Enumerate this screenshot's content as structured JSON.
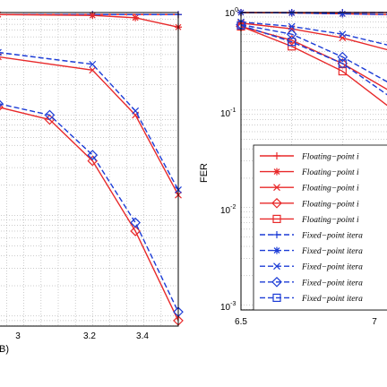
{
  "chart_data": [
    {
      "type": "line",
      "panel": "left",
      "xlim": [
        2.45,
        3.5
      ],
      "ylim_log": [
        0.0008,
        1.1
      ],
      "yscale": "log",
      "grid": true,
      "xticks": [
        "3",
        "3.2",
        "3.4"
      ],
      "xlabel_fragment": "B)",
      "series": [
        {
          "color": "#e8292a",
          "dash": false,
          "marker": "plus",
          "x": [
            2.45,
            3.0,
            3.5
          ],
          "y": [
            1.0,
            1.0,
            1.0
          ]
        },
        {
          "color": "#1c3cd6",
          "dash": true,
          "marker": "plus",
          "x": [
            2.45,
            3.0,
            3.5
          ],
          "y": [
            1.0,
            1.0,
            1.0
          ]
        },
        {
          "color": "#e8292a",
          "dash": false,
          "marker": "star",
          "x": [
            2.45,
            3.0,
            3.25,
            3.5
          ],
          "y": [
            1.0,
            0.98,
            0.93,
            0.75
          ]
        },
        {
          "color": "#e8292a",
          "dash": false,
          "marker": "x",
          "x": [
            2.45,
            3.0,
            3.25,
            3.5
          ],
          "y": [
            0.38,
            0.28,
            0.1,
            0.016
          ]
        },
        {
          "color": "#1c3cd6",
          "dash": true,
          "marker": "x",
          "x": [
            2.45,
            3.0,
            3.25,
            3.5
          ],
          "y": [
            0.42,
            0.32,
            0.11,
            0.018
          ]
        },
        {
          "color": "#e8292a",
          "dash": false,
          "marker": "diamond",
          "x": [
            2.45,
            2.75,
            3.0,
            3.25,
            3.5
          ],
          "y": [
            0.12,
            0.09,
            0.035,
            0.007,
            0.0009
          ]
        },
        {
          "color": "#1c3cd6",
          "dash": true,
          "marker": "diamond",
          "x": [
            2.45,
            2.75,
            3.0,
            3.25,
            3.5
          ],
          "y": [
            0.13,
            0.1,
            0.04,
            0.0085,
            0.0011
          ]
        }
      ]
    },
    {
      "type": "line",
      "panel": "right",
      "xlim": [
        6.5,
        7.25
      ],
      "ylim_log": [
        0.0005,
        1.0
      ],
      "yscale": "log",
      "grid": true,
      "ylabel": "FER",
      "yticks": [
        "10^0",
        "10^-1",
        "10^-2",
        "10^-3"
      ],
      "xticks": [
        "6.5",
        "7"
      ],
      "legend": {
        "placement": "lower-right",
        "entries": [
          {
            "label": "Floating−point i",
            "color": "#e8292a",
            "dash": false,
            "marker": "plus"
          },
          {
            "label": "Floating−point i",
            "color": "#e8292a",
            "dash": false,
            "marker": "star"
          },
          {
            "label": "Floating−point i",
            "color": "#e8292a",
            "dash": false,
            "marker": "x"
          },
          {
            "label": "Floating−point i",
            "color": "#e8292a",
            "dash": false,
            "marker": "diamond"
          },
          {
            "label": "Floating−point i",
            "color": "#e8292a",
            "dash": false,
            "marker": "square"
          },
          {
            "label": "Fixed−point itera",
            "color": "#1c3cd6",
            "dash": true,
            "marker": "plus"
          },
          {
            "label": "Fixed−point itera",
            "color": "#1c3cd6",
            "dash": true,
            "marker": "star"
          },
          {
            "label": "Fixed−point itera",
            "color": "#1c3cd6",
            "dash": true,
            "marker": "x"
          },
          {
            "label": "Fixed−point itera",
            "color": "#1c3cd6",
            "dash": true,
            "marker": "diamond"
          },
          {
            "label": "Fixed−point itera",
            "color": "#1c3cd6",
            "dash": true,
            "marker": "square"
          }
        ]
      },
      "series": [
        {
          "color": "#e8292a",
          "dash": false,
          "marker": "plus",
          "x": [
            6.5,
            6.75,
            7.0,
            7.25
          ],
          "y": [
            1.0,
            1.0,
            1.0,
            1.0
          ]
        },
        {
          "color": "#1c3cd6",
          "dash": true,
          "marker": "plus",
          "x": [
            6.5,
            6.75,
            7.0,
            7.25
          ],
          "y": [
            1.0,
            1.0,
            1.0,
            1.0
          ]
        },
        {
          "color": "#e8292a",
          "dash": false,
          "marker": "star",
          "x": [
            6.5,
            6.75,
            7.0,
            7.25
          ],
          "y": [
            1.0,
            0.99,
            0.97,
            0.95
          ]
        },
        {
          "color": "#1c3cd6",
          "dash": true,
          "marker": "star",
          "x": [
            6.5,
            6.75,
            7.0,
            7.25
          ],
          "y": [
            1.0,
            0.99,
            0.97,
            0.95
          ]
        },
        {
          "color": "#e8292a",
          "dash": false,
          "marker": "x",
          "x": [
            6.5,
            6.75,
            7.0,
            7.25
          ],
          "y": [
            0.78,
            0.68,
            0.55,
            0.4
          ]
        },
        {
          "color": "#1c3cd6",
          "dash": true,
          "marker": "x",
          "x": [
            6.5,
            6.75,
            7.0,
            7.25
          ],
          "y": [
            0.8,
            0.72,
            0.6,
            0.45
          ]
        },
        {
          "color": "#e8292a",
          "dash": false,
          "marker": "diamond",
          "x": [
            6.5,
            6.75,
            7.0,
            7.25
          ],
          "y": [
            0.72,
            0.52,
            0.3,
            0.15
          ]
        },
        {
          "color": "#1c3cd6",
          "dash": true,
          "marker": "diamond",
          "x": [
            6.5,
            6.75,
            7.0,
            7.25
          ],
          "y": [
            0.75,
            0.6,
            0.35,
            0.18
          ]
        },
        {
          "color": "#e8292a",
          "dash": false,
          "marker": "square",
          "x": [
            6.5,
            6.75,
            7.0,
            7.25
          ],
          "y": [
            0.72,
            0.45,
            0.25,
            0.1
          ]
        },
        {
          "color": "#1c3cd6",
          "dash": true,
          "marker": "square",
          "x": [
            6.5,
            6.75,
            7.0,
            7.25
          ],
          "y": [
            0.74,
            0.5,
            0.3,
            0.13
          ]
        }
      ]
    }
  ]
}
